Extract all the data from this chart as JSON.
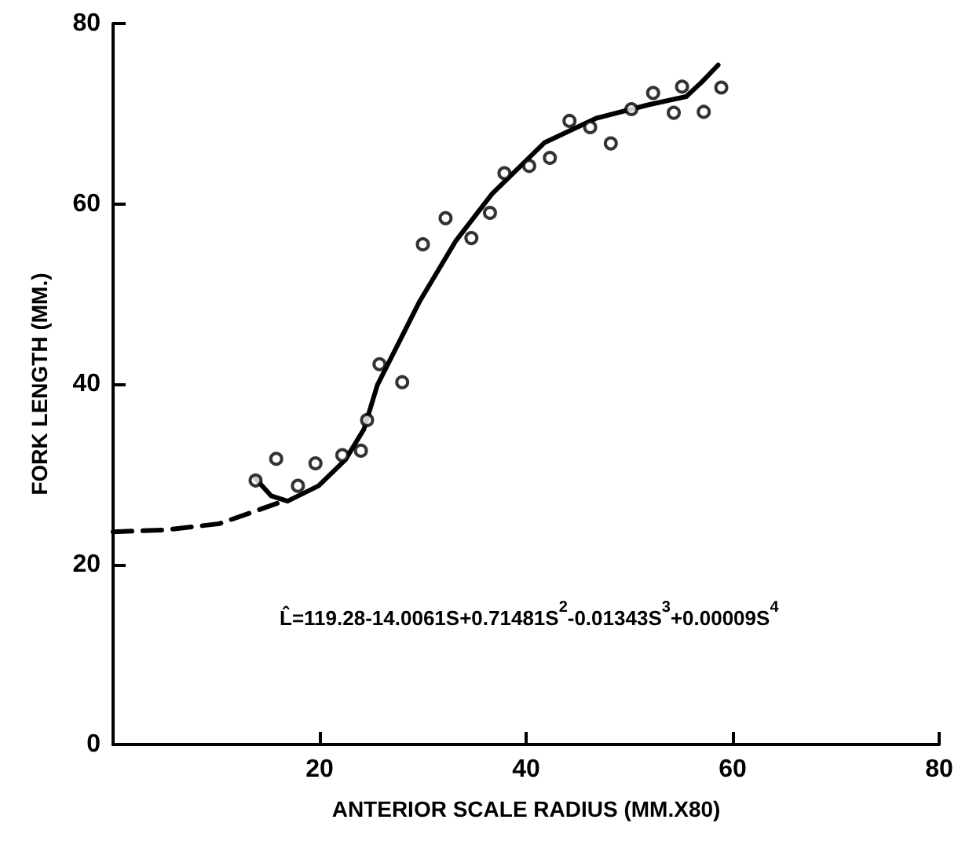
{
  "chart_data": {
    "type": "scatter",
    "xlabel": "ANTERIOR SCALE RADIUS (MM.X80)",
    "ylabel": "FORK LENGTH (MM.)",
    "xlim": [
      0,
      80
    ],
    "ylim": [
      0,
      80
    ],
    "xticks": [
      20,
      40,
      60,
      80
    ],
    "yticks": [
      0,
      20,
      40,
      60,
      80
    ],
    "grid": false,
    "marker": "circle",
    "annotations": [
      "L̂=119.28-14.0061S+0.71481S$^{2}$-0.01343S$^{3}$+0.00009S$^{4}$"
    ],
    "series": [
      {
        "color": "#000000",
        "x": [
          13.8,
          15.8,
          17.9,
          19.6,
          22.2,
          24.0,
          24.6,
          25.8,
          28.0,
          30.0,
          32.2,
          34.7,
          36.5,
          37.9,
          40.3,
          42.3,
          44.2,
          46.2,
          48.2,
          50.2,
          52.3,
          54.3,
          55.1,
          57.2,
          58.9
        ],
        "values": [
          29.3,
          31.7,
          28.7,
          31.2,
          32.1,
          32.6,
          36.0,
          42.2,
          40.2,
          55.5,
          58.4,
          56.2,
          59.0,
          63.4,
          64.2,
          65.1,
          69.2,
          68.5,
          66.7,
          70.5,
          72.3,
          70.1,
          73.0,
          70.2,
          72.9
        ]
      },
      {
        "type": "line",
        "color": "#000000",
        "marker": "none",
        "line_style": "solid",
        "x": [
          13.8,
          15.3,
          16.9,
          19.9,
          22.5,
          24.3,
          25.6,
          29.7,
          33.2,
          36.7,
          41.8,
          46.8,
          51.9,
          55.5,
          57.0,
          58.6
        ],
        "values": [
          29.5,
          27.6,
          27.0,
          28.7,
          31.6,
          35.0,
          39.9,
          49.2,
          55.9,
          61.1,
          66.8,
          69.5,
          71.0,
          71.9,
          73.5,
          75.4
        ]
      },
      {
        "type": "line",
        "color": "#000000",
        "marker": "none",
        "line_style": "dashed",
        "x": [
          0,
          5,
          10.3,
          16
        ],
        "values": [
          23.6,
          23.8,
          24.5,
          26.8
        ]
      }
    ]
  }
}
